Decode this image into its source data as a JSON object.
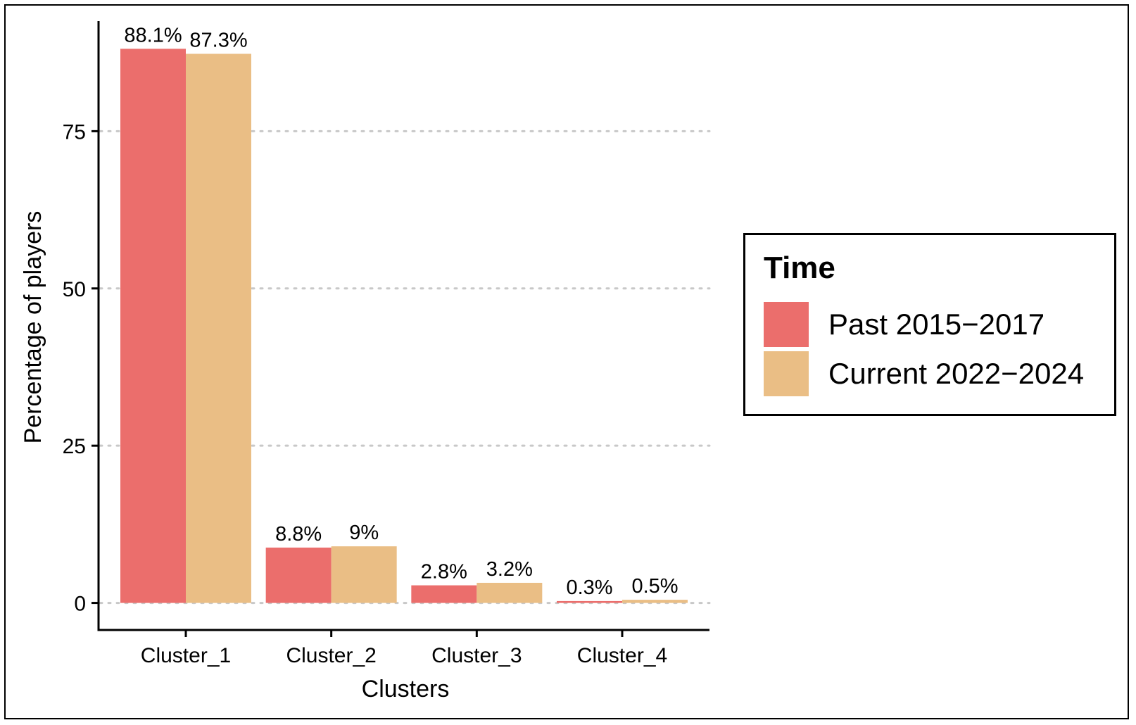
{
  "chart_data": {
    "type": "bar",
    "categories": [
      "Cluster_1",
      "Cluster_2",
      "Cluster_3",
      "Cluster_4"
    ],
    "series": [
      {
        "name": "Past 2015−2017",
        "values": [
          88.1,
          8.8,
          2.8,
          0.3
        ],
        "labels": [
          "88.1%",
          "8.8%",
          "2.8%",
          "0.3%"
        ],
        "color": "#EB6E6C"
      },
      {
        "name": "Current 2022−2024",
        "values": [
          87.3,
          9,
          3.2,
          0.5
        ],
        "labels": [
          "87.3%",
          "9%",
          "3.2%",
          "0.5%"
        ],
        "color": "#EABE85"
      }
    ],
    "xlabel": "Clusters",
    "ylabel": "Percentage of players",
    "yticks": [
      0,
      25,
      50,
      75
    ],
    "ylim": [
      -4.3,
      92.5
    ],
    "grid": "horizontal dotted",
    "legend_title": "Time",
    "legend_position": "right"
  }
}
